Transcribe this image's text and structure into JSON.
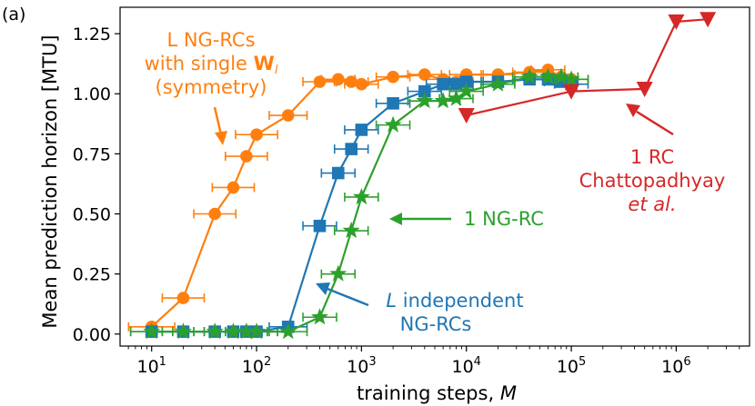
{
  "panel_label": "(a)",
  "chart_data": {
    "type": "line",
    "xscale": "log",
    "xlim": [
      5,
      5000000
    ],
    "ylim": [
      -0.05,
      1.36
    ],
    "xlabel": "training steps, M",
    "ylabel": "Mean prediction horizon [MTU]",
    "yticks": [
      0.0,
      0.25,
      0.5,
      0.75,
      1.0,
      1.25
    ],
    "ytick_labels": [
      "0.00",
      "0.25",
      "0.50",
      "0.75",
      "1.00",
      "1.25"
    ],
    "xticks": [
      10,
      100,
      1000,
      10000,
      100000,
      1000000
    ],
    "xtick_labels": [
      {
        "base": "10",
        "exp": "1"
      },
      {
        "base": "10",
        "exp": "2"
      },
      {
        "base": "10",
        "exp": "3"
      },
      {
        "base": "10",
        "exp": "4"
      },
      {
        "base": "10",
        "exp": "5"
      },
      {
        "base": "10",
        "exp": "6"
      }
    ],
    "series": [
      {
        "name": "L NG-RCs with single W_l (symmetry)",
        "color": "#ff7f0e",
        "marker": "circle",
        "x": [
          10,
          20,
          40,
          60,
          80,
          100,
          200,
          400,
          600,
          800,
          1000,
          2000,
          4000,
          6000,
          8000,
          10000,
          20000,
          40000,
          60000,
          80000,
          100000
        ],
        "y": [
          0.03,
          0.15,
          0.5,
          0.61,
          0.74,
          0.83,
          0.91,
          1.05,
          1.06,
          1.05,
          1.04,
          1.07,
          1.08,
          1.06,
          1.05,
          1.08,
          1.08,
          1.09,
          1.1,
          1.07,
          1.06
        ],
        "xerr": [
          0.22,
          0.2,
          0.2,
          0.2,
          0.2,
          0.2,
          0.18,
          0.16,
          0.16,
          0.16,
          0.16,
          0.16,
          0.16,
          0.16,
          0.16,
          0.16,
          0.16,
          0.16,
          0.16,
          0.16,
          0.16
        ]
      },
      {
        "name": "L independent NG-RCs",
        "color": "#1f77b4",
        "marker": "square",
        "x": [
          10,
          20,
          40,
          60,
          80,
          100,
          200,
          400,
          600,
          800,
          1000,
          2000,
          4000,
          6000,
          8000,
          10000,
          20000,
          40000,
          60000,
          80000,
          100000
        ],
        "y": [
          0.01,
          0.01,
          0.01,
          0.01,
          0.01,
          0.01,
          0.03,
          0.45,
          0.67,
          0.77,
          0.85,
          0.96,
          1.01,
          1.04,
          1.04,
          1.05,
          1.05,
          1.06,
          1.06,
          1.05,
          1.04
        ],
        "xerr": [
          0.2,
          0.2,
          0.2,
          0.2,
          0.2,
          0.2,
          0.18,
          0.16,
          0.16,
          0.16,
          0.16,
          0.16,
          0.16,
          0.16,
          0.16,
          0.16,
          0.16,
          0.16,
          0.16,
          0.16,
          0.16
        ]
      },
      {
        "name": "1 NG-RC",
        "color": "#2ca02c",
        "marker": "star",
        "x": [
          10,
          20,
          40,
          60,
          80,
          100,
          200,
          400,
          600,
          800,
          1000,
          2000,
          4000,
          6000,
          8000,
          10000,
          20000,
          40000,
          60000,
          80000,
          100000
        ],
        "y": [
          0.01,
          0.01,
          0.01,
          0.01,
          0.01,
          0.01,
          0.01,
          0.07,
          0.25,
          0.43,
          0.57,
          0.87,
          0.97,
          0.97,
          0.98,
          1.01,
          1.04,
          1.07,
          1.07,
          1.07,
          1.06
        ],
        "xerr": [
          0.2,
          0.2,
          0.2,
          0.2,
          0.2,
          0.2,
          0.18,
          0.16,
          0.16,
          0.16,
          0.16,
          0.16,
          0.16,
          0.16,
          0.16,
          0.16,
          0.16,
          0.16,
          0.16,
          0.16,
          0.16
        ]
      },
      {
        "name": "1 RC Chattopadhyay et al.",
        "color": "#d62728",
        "marker": "triangle-down",
        "x": [
          10000,
          100000,
          500000,
          1000000,
          2000000
        ],
        "y": [
          0.91,
          1.01,
          1.02,
          1.3,
          1.31
        ],
        "xerr": [
          0,
          0,
          0,
          0,
          0
        ]
      }
    ],
    "annotations": {
      "orange_lines": [
        "L NG-RCs",
        "with single ",
        "(symmetry)"
      ],
      "orange_bold": "W",
      "orange_sub": "l",
      "green": "1 NG-RC",
      "blue_line1_italic": "L",
      "blue_line1_rest": " independent",
      "blue_line2": "NG-RCs",
      "red_line1": "1 RC",
      "red_line2": "Chattopadhyay",
      "red_line3": "et al."
    }
  }
}
